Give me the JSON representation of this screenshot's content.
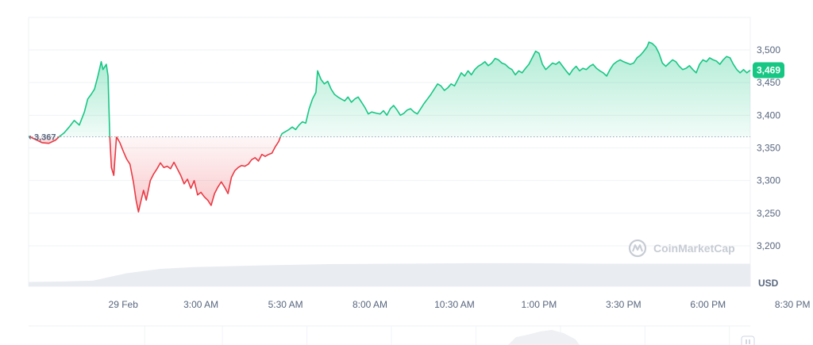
{
  "chart_data": {
    "type": "area",
    "currency_label": "USD",
    "baseline": {
      "value": 3367,
      "label": "3,367"
    },
    "current_price": {
      "value": 3469,
      "label": "3,469"
    },
    "watermark": "CoinMarketCap",
    "ylim": [
      3150,
      3525
    ],
    "y_ticks": [
      {
        "value": 3500,
        "label": "3,500"
      },
      {
        "value": 3450,
        "label": "3,450"
      },
      {
        "value": 3400,
        "label": "3,400"
      },
      {
        "value": 3350,
        "label": "3,350"
      },
      {
        "value": 3300,
        "label": "3,300"
      },
      {
        "value": 3250,
        "label": "3,250"
      },
      {
        "value": 3200,
        "label": "3,200"
      }
    ],
    "x_ticks": [
      {
        "t": 2.9,
        "label": "29 Feb"
      },
      {
        "t": 5.2,
        "label": "3:00 AM"
      },
      {
        "t": 7.7,
        "label": "5:30 AM"
      },
      {
        "t": 10.2,
        "label": "8:00 AM"
      },
      {
        "t": 12.7,
        "label": "10:30 AM"
      },
      {
        "t": 15.2,
        "label": "1:00 PM"
      },
      {
        "t": 17.7,
        "label": "3:30 PM"
      },
      {
        "t": 20.2,
        "label": "6:00 PM"
      },
      {
        "t": 22.7,
        "label": "8:30 PM"
      }
    ],
    "colors": {
      "up_line": "#16c784",
      "down_line": "#ea3943",
      "up_fill": "#16c784",
      "down_fill": "#ea3943",
      "badge": "#16c784",
      "grid": "#eff2f5",
      "volume": "#e6e9ee"
    },
    "series": [
      {
        "values": [
          [
            0.1,
            3368
          ],
          [
            0.3,
            3363
          ],
          [
            0.5,
            3358
          ],
          [
            0.7,
            3357
          ],
          [
            0.9,
            3362
          ],
          [
            1.0,
            3367
          ],
          [
            1.15,
            3373
          ],
          [
            1.3,
            3382
          ],
          [
            1.45,
            3392
          ],
          [
            1.6,
            3385
          ],
          [
            1.75,
            3405
          ],
          [
            1.85,
            3425
          ],
          [
            1.95,
            3432
          ],
          [
            2.05,
            3440
          ],
          [
            2.15,
            3460
          ],
          [
            2.25,
            3482
          ],
          [
            2.3,
            3470
          ],
          [
            2.4,
            3478
          ],
          [
            2.45,
            3460
          ],
          [
            2.5,
            3370
          ],
          [
            2.55,
            3320
          ],
          [
            2.62,
            3308
          ],
          [
            2.7,
            3367
          ],
          [
            2.8,
            3358
          ],
          [
            2.9,
            3345
          ],
          [
            3.0,
            3333
          ],
          [
            3.1,
            3325
          ],
          [
            3.2,
            3298
          ],
          [
            3.28,
            3270
          ],
          [
            3.35,
            3252
          ],
          [
            3.42,
            3268
          ],
          [
            3.5,
            3285
          ],
          [
            3.58,
            3270
          ],
          [
            3.7,
            3300
          ],
          [
            3.8,
            3310
          ],
          [
            3.9,
            3318
          ],
          [
            4.0,
            3327
          ],
          [
            4.1,
            3320
          ],
          [
            4.2,
            3322
          ],
          [
            4.3,
            3318
          ],
          [
            4.4,
            3328
          ],
          [
            4.5,
            3318
          ],
          [
            4.6,
            3308
          ],
          [
            4.7,
            3295
          ],
          [
            4.8,
            3302
          ],
          [
            4.9,
            3288
          ],
          [
            5.0,
            3300
          ],
          [
            5.1,
            3278
          ],
          [
            5.2,
            3282
          ],
          [
            5.3,
            3275
          ],
          [
            5.4,
            3270
          ],
          [
            5.5,
            3262
          ],
          [
            5.6,
            3280
          ],
          [
            5.7,
            3290
          ],
          [
            5.8,
            3298
          ],
          [
            5.9,
            3290
          ],
          [
            6.0,
            3280
          ],
          [
            6.1,
            3305
          ],
          [
            6.2,
            3315
          ],
          [
            6.3,
            3320
          ],
          [
            6.4,
            3323
          ],
          [
            6.5,
            3322
          ],
          [
            6.6,
            3325
          ],
          [
            6.7,
            3332
          ],
          [
            6.8,
            3335
          ],
          [
            6.9,
            3330
          ],
          [
            7.0,
            3340
          ],
          [
            7.1,
            3337
          ],
          [
            7.2,
            3340
          ],
          [
            7.3,
            3342
          ],
          [
            7.4,
            3352
          ],
          [
            7.5,
            3360
          ],
          [
            7.55,
            3367
          ],
          [
            7.6,
            3372
          ],
          [
            7.7,
            3375
          ],
          [
            7.8,
            3378
          ],
          [
            7.9,
            3382
          ],
          [
            8.0,
            3378
          ],
          [
            8.1,
            3385
          ],
          [
            8.2,
            3390
          ],
          [
            8.3,
            3388
          ],
          [
            8.4,
            3410
          ],
          [
            8.5,
            3425
          ],
          [
            8.6,
            3435
          ],
          [
            8.65,
            3468
          ],
          [
            8.75,
            3455
          ],
          [
            8.85,
            3448
          ],
          [
            8.95,
            3452
          ],
          [
            9.05,
            3440
          ],
          [
            9.15,
            3432
          ],
          [
            9.25,
            3428
          ],
          [
            9.35,
            3425
          ],
          [
            9.45,
            3422
          ],
          [
            9.55,
            3428
          ],
          [
            9.65,
            3420
          ],
          [
            9.75,
            3425
          ],
          [
            9.85,
            3428
          ],
          [
            9.95,
            3420
          ],
          [
            10.05,
            3412
          ],
          [
            10.15,
            3402
          ],
          [
            10.25,
            3405
          ],
          [
            10.4,
            3403
          ],
          [
            10.5,
            3402
          ],
          [
            10.6,
            3407
          ],
          [
            10.7,
            3400
          ],
          [
            10.8,
            3410
          ],
          [
            10.9,
            3415
          ],
          [
            11.0,
            3408
          ],
          [
            11.1,
            3400
          ],
          [
            11.2,
            3403
          ],
          [
            11.3,
            3408
          ],
          [
            11.4,
            3410
          ],
          [
            11.5,
            3405
          ],
          [
            11.6,
            3402
          ],
          [
            11.7,
            3410
          ],
          [
            11.8,
            3418
          ],
          [
            11.9,
            3425
          ],
          [
            12.0,
            3432
          ],
          [
            12.1,
            3440
          ],
          [
            12.2,
            3448
          ],
          [
            12.3,
            3445
          ],
          [
            12.4,
            3438
          ],
          [
            12.5,
            3442
          ],
          [
            12.6,
            3448
          ],
          [
            12.7,
            3445
          ],
          [
            12.8,
            3455
          ],
          [
            12.9,
            3465
          ],
          [
            13.0,
            3460
          ],
          [
            13.1,
            3468
          ],
          [
            13.2,
            3462
          ],
          [
            13.3,
            3470
          ],
          [
            13.4,
            3475
          ],
          [
            13.5,
            3478
          ],
          [
            13.6,
            3482
          ],
          [
            13.7,
            3476
          ],
          [
            13.8,
            3480
          ],
          [
            13.9,
            3487
          ],
          [
            14.0,
            3485
          ],
          [
            14.1,
            3480
          ],
          [
            14.2,
            3478
          ],
          [
            14.3,
            3473
          ],
          [
            14.4,
            3470
          ],
          [
            14.5,
            3462
          ],
          [
            14.6,
            3468
          ],
          [
            14.7,
            3465
          ],
          [
            14.8,
            3472
          ],
          [
            14.9,
            3478
          ],
          [
            15.0,
            3488
          ],
          [
            15.1,
            3498
          ],
          [
            15.2,
            3495
          ],
          [
            15.3,
            3478
          ],
          [
            15.4,
            3470
          ],
          [
            15.5,
            3475
          ],
          [
            15.6,
            3480
          ],
          [
            15.7,
            3478
          ],
          [
            15.8,
            3482
          ],
          [
            15.9,
            3475
          ],
          [
            16.0,
            3468
          ],
          [
            16.1,
            3462
          ],
          [
            16.2,
            3470
          ],
          [
            16.3,
            3475
          ],
          [
            16.4,
            3468
          ],
          [
            16.5,
            3472
          ],
          [
            16.6,
            3470
          ],
          [
            16.7,
            3475
          ],
          [
            16.8,
            3478
          ],
          [
            16.9,
            3472
          ],
          [
            17.0,
            3468
          ],
          [
            17.1,
            3465
          ],
          [
            17.2,
            3460
          ],
          [
            17.3,
            3470
          ],
          [
            17.4,
            3478
          ],
          [
            17.5,
            3482
          ],
          [
            17.6,
            3485
          ],
          [
            17.7,
            3482
          ],
          [
            17.8,
            3480
          ],
          [
            17.9,
            3478
          ],
          [
            18.0,
            3480
          ],
          [
            18.1,
            3488
          ],
          [
            18.2,
            3492
          ],
          [
            18.3,
            3498
          ],
          [
            18.4,
            3505
          ],
          [
            18.45,
            3512
          ],
          [
            18.55,
            3510
          ],
          [
            18.65,
            3505
          ],
          [
            18.75,
            3495
          ],
          [
            18.85,
            3480
          ],
          [
            18.95,
            3475
          ],
          [
            19.05,
            3480
          ],
          [
            19.15,
            3485
          ],
          [
            19.25,
            3482
          ],
          [
            19.35,
            3475
          ],
          [
            19.45,
            3470
          ],
          [
            19.55,
            3472
          ],
          [
            19.65,
            3476
          ],
          [
            19.75,
            3470
          ],
          [
            19.85,
            3465
          ],
          [
            19.95,
            3478
          ],
          [
            20.05,
            3485
          ],
          [
            20.15,
            3482
          ],
          [
            20.25,
            3488
          ],
          [
            20.35,
            3485
          ],
          [
            20.45,
            3483
          ],
          [
            20.55,
            3478
          ],
          [
            20.65,
            3485
          ],
          [
            20.75,
            3490
          ],
          [
            20.85,
            3488
          ],
          [
            20.95,
            3478
          ],
          [
            21.05,
            3470
          ],
          [
            21.15,
            3465
          ],
          [
            21.25,
            3470
          ],
          [
            21.35,
            3465
          ],
          [
            21.45,
            3469
          ]
        ]
      }
    ],
    "volume": {
      "values": [
        [
          0.1,
          0.1
        ],
        [
          1.0,
          0.11
        ],
        [
          2.0,
          0.13
        ],
        [
          3.0,
          0.3
        ],
        [
          4.0,
          0.4
        ],
        [
          5.0,
          0.44
        ],
        [
          7.0,
          0.48
        ],
        [
          9.0,
          0.51
        ],
        [
          11.0,
          0.52
        ],
        [
          13.0,
          0.53
        ],
        [
          15.0,
          0.53
        ],
        [
          17.0,
          0.52
        ],
        [
          19.0,
          0.52
        ],
        [
          21.45,
          0.52
        ]
      ]
    }
  }
}
